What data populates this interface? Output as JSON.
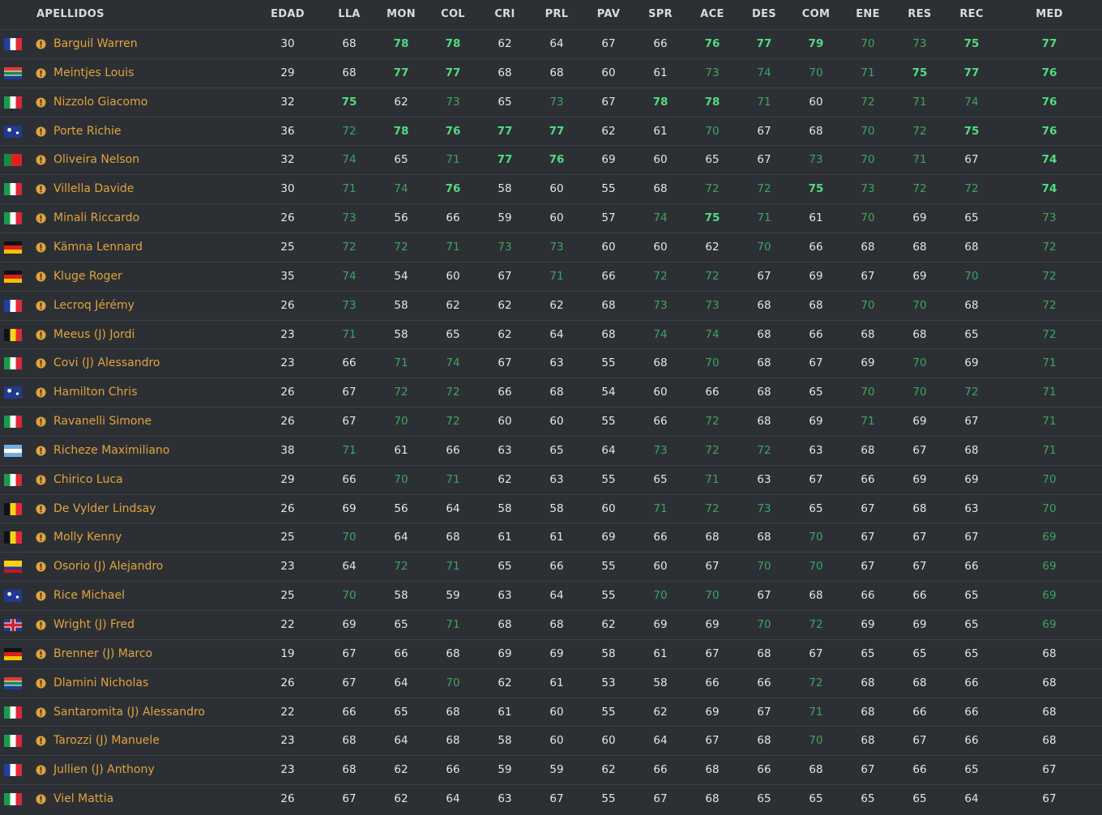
{
  "table": {
    "columns": [
      "APELLIDOS",
      "EDAD",
      "LLA",
      "MON",
      "COL",
      "CRI",
      "PRL",
      "PAV",
      "SPR",
      "ACE",
      "DES",
      "COM",
      "ENE",
      "RES",
      "REC",
      "MED"
    ],
    "rows": [
      {
        "name": "Barguil Warren",
        "values": [
          30,
          68,
          78,
          78,
          62,
          64,
          67,
          66,
          76,
          77,
          79,
          70,
          73,
          75,
          77
        ]
      },
      {
        "name": "Meintjes Louis",
        "values": [
          29,
          68,
          77,
          77,
          68,
          68,
          60,
          61,
          73,
          74,
          70,
          71,
          75,
          77,
          76
        ]
      },
      {
        "name": "Nizzolo Giacomo",
        "values": [
          32,
          75,
          62,
          73,
          65,
          73,
          67,
          78,
          78,
          71,
          60,
          72,
          71,
          74,
          76
        ]
      },
      {
        "name": "Porte Richie",
        "values": [
          36,
          72,
          78,
          76,
          77,
          77,
          62,
          61,
          70,
          67,
          68,
          70,
          72,
          75,
          76
        ]
      },
      {
        "name": "Oliveira Nelson",
        "values": [
          32,
          74,
          65,
          71,
          77,
          76,
          69,
          60,
          65,
          67,
          73,
          70,
          71,
          67,
          74
        ]
      },
      {
        "name": "Villella Davide",
        "values": [
          30,
          71,
          74,
          76,
          58,
          60,
          55,
          68,
          72,
          72,
          75,
          73,
          72,
          72,
          74
        ]
      },
      {
        "name": "Minali Riccardo",
        "values": [
          26,
          73,
          56,
          66,
          59,
          60,
          57,
          74,
          75,
          71,
          61,
          70,
          69,
          65,
          73
        ]
      },
      {
        "name": "Kämna Lennard",
        "values": [
          25,
          72,
          72,
          71,
          73,
          73,
          60,
          60,
          62,
          70,
          66,
          68,
          68,
          68,
          72
        ]
      },
      {
        "name": "Kluge Roger",
        "values": [
          35,
          74,
          54,
          60,
          67,
          71,
          66,
          72,
          72,
          67,
          69,
          67,
          69,
          70,
          72
        ]
      },
      {
        "name": "Lecroq Jérémy",
        "values": [
          26,
          73,
          58,
          62,
          62,
          62,
          68,
          73,
          73,
          68,
          68,
          70,
          70,
          68,
          72
        ]
      },
      {
        "name": "Meeus (J) Jordi",
        "values": [
          23,
          71,
          58,
          65,
          62,
          64,
          68,
          74,
          74,
          68,
          66,
          68,
          68,
          65,
          72
        ]
      },
      {
        "name": "Covi (J) Alessandro",
        "values": [
          23,
          66,
          71,
          74,
          67,
          63,
          55,
          68,
          70,
          68,
          67,
          69,
          70,
          69,
          71
        ]
      },
      {
        "name": "Hamilton Chris",
        "values": [
          26,
          67,
          72,
          72,
          66,
          68,
          54,
          60,
          66,
          68,
          65,
          70,
          70,
          72,
          71
        ]
      },
      {
        "name": "Ravanelli Simone",
        "values": [
          26,
          67,
          70,
          72,
          60,
          60,
          55,
          66,
          72,
          68,
          69,
          71,
          69,
          67,
          71
        ]
      },
      {
        "name": "Richeze Maximiliano",
        "values": [
          38,
          71,
          61,
          66,
          63,
          65,
          64,
          73,
          72,
          72,
          63,
          68,
          67,
          68,
          71
        ]
      },
      {
        "name": "Chirico Luca",
        "values": [
          29,
          66,
          70,
          71,
          62,
          63,
          55,
          65,
          71,
          63,
          67,
          66,
          69,
          69,
          70
        ]
      },
      {
        "name": "De Vylder Lindsay",
        "values": [
          26,
          69,
          56,
          64,
          58,
          58,
          60,
          71,
          72,
          73,
          65,
          67,
          68,
          63,
          70
        ]
      },
      {
        "name": "Molly Kenny",
        "values": [
          25,
          70,
          64,
          68,
          61,
          61,
          69,
          66,
          68,
          68,
          70,
          67,
          67,
          67,
          69
        ]
      },
      {
        "name": "Osorio (J) Alejandro",
        "values": [
          23,
          64,
          72,
          71,
          65,
          66,
          55,
          60,
          67,
          70,
          70,
          67,
          67,
          66,
          69
        ]
      },
      {
        "name": "Rice Michael",
        "values": [
          25,
          70,
          58,
          59,
          63,
          64,
          55,
          70,
          70,
          67,
          68,
          66,
          66,
          65,
          69
        ]
      },
      {
        "name": "Wright (J) Fred",
        "values": [
          22,
          69,
          65,
          71,
          68,
          68,
          62,
          69,
          69,
          70,
          72,
          69,
          69,
          65,
          69
        ]
      },
      {
        "name": "Brenner (J) Marco",
        "values": [
          19,
          67,
          66,
          68,
          69,
          69,
          58,
          61,
          67,
          68,
          67,
          65,
          65,
          65,
          68
        ]
      },
      {
        "name": "Dlamini Nicholas",
        "values": [
          26,
          67,
          64,
          70,
          62,
          61,
          53,
          58,
          66,
          66,
          72,
          68,
          68,
          66,
          68
        ]
      },
      {
        "name": "Santaromita (J) Alessandro",
        "values": [
          22,
          66,
          65,
          68,
          61,
          60,
          55,
          62,
          69,
          67,
          71,
          68,
          66,
          66,
          68
        ]
      },
      {
        "name": "Tarozzi (J) Manuele",
        "values": [
          23,
          68,
          64,
          68,
          58,
          60,
          60,
          64,
          67,
          68,
          70,
          68,
          67,
          66,
          68
        ]
      },
      {
        "name": "Jullien (J) Anthony",
        "values": [
          23,
          68,
          62,
          66,
          59,
          59,
          62,
          66,
          68,
          66,
          68,
          67,
          66,
          65,
          67
        ]
      },
      {
        "name": "Viel Mattia",
        "values": [
          26,
          67,
          62,
          64,
          63,
          67,
          55,
          67,
          68,
          65,
          65,
          65,
          65,
          64,
          67
        ]
      }
    ]
  },
  "grading": {
    "default_color": "#e4e6e8",
    "mild_color": "#3ea45f",
    "strong_color": "#52dc7e",
    "default": {
      "strong": 75,
      "mild": 70
    },
    "last_column": {
      "strong": 74,
      "mild": 69
    },
    "ungraded_columns": [
      1
    ]
  }
}
